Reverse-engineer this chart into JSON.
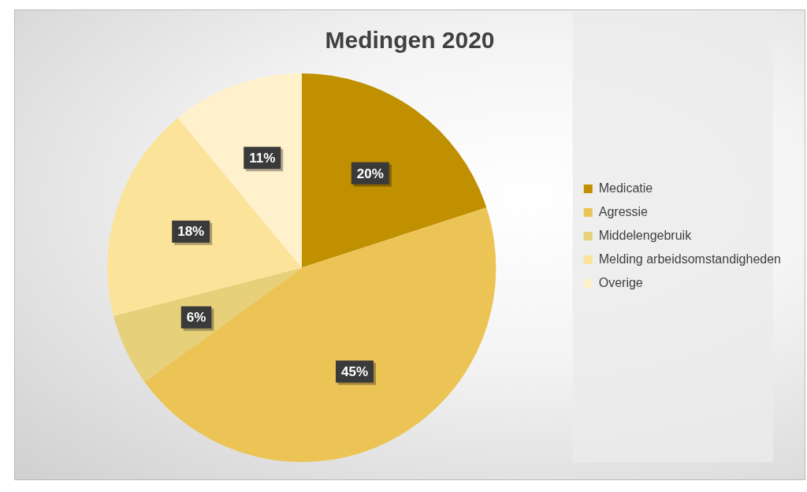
{
  "chart_data": {
    "type": "pie",
    "title": "Medingen 2020",
    "categories": [
      "Medicatie",
      "Agressie",
      "Middelengebruik",
      "Melding arbeidsomstandigheden",
      "Overige"
    ],
    "values": [
      20,
      45,
      6,
      18,
      11
    ],
    "colors": [
      "#c09000",
      "#ecc455",
      "#e6d07a",
      "#fce39a",
      "#fff1cc"
    ],
    "value_labels": [
      "20%",
      "45%",
      "6%",
      "18%",
      "11%"
    ],
    "legend": "right"
  }
}
